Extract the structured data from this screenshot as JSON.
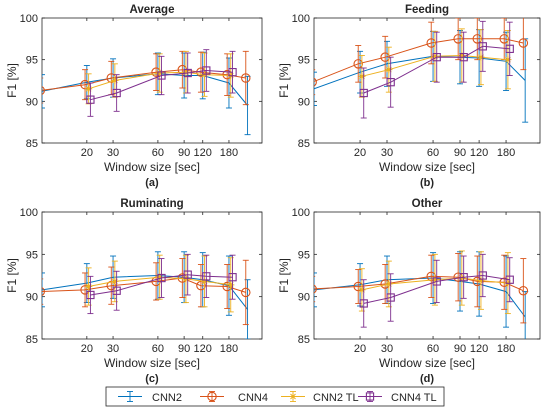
{
  "legend": {
    "placement": "bottom-center",
    "entries": [
      {
        "label": "CNN2",
        "color": "#0072BD",
        "marker": "errorbar"
      },
      {
        "label": "CNN4",
        "color": "#D95319",
        "marker": "circle"
      },
      {
        "label": "CNN2 TL",
        "color": "#EDB120",
        "marker": "asterisk"
      },
      {
        "label": "CNN4 TL",
        "color": "#7E2F8E",
        "marker": "square"
      }
    ]
  },
  "chart_data": [
    {
      "type": "line",
      "title": "Average",
      "panel_label": "(a)",
      "xlabel": "Window size [sec]",
      "ylabel": "F1 [%]",
      "xscale": "log",
      "xlim": [
        10,
        300
      ],
      "ylim": [
        85,
        100
      ],
      "xticks": [
        20,
        30,
        60,
        90,
        120,
        180
      ],
      "xtick_labels": [
        "20",
        "30",
        "60",
        "90",
        "120",
        "180"
      ],
      "yticks": [
        85,
        90,
        95,
        100
      ],
      "ytick_labels": [
        "85",
        "90",
        "95",
        "100"
      ],
      "grid": false,
      "series": [
        {
          "name": "CNN2",
          "x": [
            10,
            20,
            30,
            60,
            90,
            120,
            180,
            240
          ],
          "y": [
            91.2,
            92.3,
            92.8,
            93.3,
            93.1,
            93.1,
            92.2,
            89.5
          ],
          "err": [
            2.0,
            2.0,
            2.3,
            2.5,
            2.7,
            2.8,
            3.0,
            3.5
          ]
        },
        {
          "name": "CNN4",
          "x": [
            10,
            20,
            30,
            60,
            90,
            120,
            180,
            240
          ],
          "y": [
            91.3,
            92.0,
            92.8,
            93.5,
            93.8,
            93.5,
            93.2,
            92.8
          ],
          "err": [
            1.5,
            1.8,
            2.0,
            2.2,
            2.2,
            2.4,
            2.5,
            3.2
          ]
        },
        {
          "name": "CNN2 TL",
          "x": [
            20,
            30,
            60,
            90,
            120,
            180
          ],
          "y": [
            91.5,
            92.5,
            93.4,
            93.5,
            93.2,
            93.1
          ],
          "err": [
            1.8,
            2.0,
            2.3,
            2.5,
            2.6,
            2.6
          ]
        },
        {
          "name": "CNN4 TL",
          "x": [
            20,
            30,
            60,
            90,
            120,
            180
          ],
          "y": [
            90.2,
            91.0,
            93.1,
            93.4,
            93.7,
            93.5
          ],
          "err": [
            2.0,
            2.2,
            2.3,
            2.4,
            2.5,
            2.5
          ]
        }
      ]
    },
    {
      "type": "line",
      "title": "Feeding",
      "panel_label": "(b)",
      "xlabel": "Window size [sec]",
      "ylabel": "F1 [%]",
      "xscale": "log",
      "xlim": [
        10,
        300
      ],
      "ylim": [
        85,
        100
      ],
      "xticks": [
        20,
        30,
        60,
        90,
        120,
        180
      ],
      "xtick_labels": [
        "20",
        "30",
        "60",
        "90",
        "120",
        "180"
      ],
      "yticks": [
        85,
        90,
        95,
        100
      ],
      "ytick_labels": [
        "85",
        "90",
        "95",
        "100"
      ],
      "grid": false,
      "series": [
        {
          "name": "CNN2",
          "x": [
            10,
            20,
            30,
            60,
            90,
            120,
            180,
            240
          ],
          "y": [
            91.5,
            93.5,
            94.5,
            95.4,
            95.3,
            95.2,
            94.8,
            92.5
          ],
          "err": [
            2.0,
            2.5,
            2.7,
            3.0,
            3.2,
            3.4,
            3.5,
            5.0
          ]
        },
        {
          "name": "CNN4",
          "x": [
            10,
            20,
            30,
            60,
            90,
            120,
            180,
            240
          ],
          "y": [
            92.3,
            94.5,
            95.3,
            97.0,
            97.5,
            97.5,
            97.5,
            97.0
          ],
          "err": [
            1.5,
            2.2,
            2.5,
            2.5,
            2.5,
            2.5,
            2.5,
            3.2
          ]
        },
        {
          "name": "CNN2 TL",
          "x": [
            20,
            30,
            60,
            90,
            120,
            180
          ],
          "y": [
            93.0,
            93.8,
            95.4,
            95.5,
            95.3,
            95.0
          ],
          "err": [
            2.5,
            2.7,
            3.0,
            3.2,
            3.3,
            3.5
          ]
        },
        {
          "name": "CNN4 TL",
          "x": [
            20,
            30,
            60,
            90,
            120,
            180
          ],
          "y": [
            91.0,
            92.3,
            95.3,
            95.3,
            96.6,
            96.3
          ],
          "err": [
            3.0,
            3.0,
            3.0,
            3.0,
            3.0,
            3.2
          ]
        }
      ]
    },
    {
      "type": "line",
      "title": "Ruminating",
      "panel_label": "(c)",
      "xlabel": "Window size [sec]",
      "ylabel": "F1 [%]",
      "xscale": "log",
      "xlim": [
        10,
        300
      ],
      "ylim": [
        85,
        100
      ],
      "xticks": [
        20,
        30,
        60,
        90,
        120,
        180
      ],
      "xtick_labels": [
        "20",
        "30",
        "60",
        "90",
        "120",
        "180"
      ],
      "yticks": [
        85,
        90,
        95,
        100
      ],
      "ytick_labels": [
        "85",
        "90",
        "95",
        "100"
      ],
      "grid": false,
      "series": [
        {
          "name": "CNN2",
          "x": [
            10,
            20,
            30,
            60,
            90,
            120,
            180,
            240
          ],
          "y": [
            90.8,
            91.6,
            92.3,
            92.5,
            92.3,
            92.0,
            91.3,
            88.5
          ],
          "err": [
            2.0,
            2.3,
            2.5,
            2.8,
            3.0,
            3.2,
            3.5,
            3.5
          ]
        },
        {
          "name": "CNN4",
          "x": [
            10,
            20,
            30,
            60,
            90,
            120,
            180,
            240
          ],
          "y": [
            90.6,
            90.8,
            91.3,
            91.8,
            92.2,
            91.3,
            91.2,
            90.5
          ],
          "err": [
            1.5,
            2.0,
            2.2,
            2.2,
            2.3,
            2.5,
            2.6,
            3.8
          ]
        },
        {
          "name": "CNN2 TL",
          "x": [
            20,
            30,
            60,
            90,
            120,
            180
          ],
          "y": [
            91.2,
            91.8,
            92.3,
            92.1,
            91.8,
            91.4
          ],
          "err": [
            2.2,
            2.4,
            2.6,
            2.8,
            3.0,
            3.2
          ]
        },
        {
          "name": "CNN4 TL",
          "x": [
            20,
            30,
            60,
            90,
            120,
            180
          ],
          "y": [
            90.2,
            90.7,
            92.2,
            92.6,
            92.4,
            92.3
          ],
          "err": [
            2.2,
            2.3,
            2.3,
            2.4,
            2.5,
            2.6
          ]
        }
      ]
    },
    {
      "type": "line",
      "title": "Other",
      "panel_label": "(d)",
      "xlabel": "Window size [sec]",
      "ylabel": "F1 [%]",
      "xscale": "log",
      "xlim": [
        10,
        300
      ],
      "ylim": [
        85,
        100
      ],
      "xticks": [
        20,
        30,
        60,
        90,
        120,
        180
      ],
      "xtick_labels": [
        "20",
        "30",
        "60",
        "90",
        "120",
        "180"
      ],
      "yticks": [
        85,
        90,
        95,
        100
      ],
      "ytick_labels": [
        "85",
        "90",
        "95",
        "100"
      ],
      "grid": false,
      "series": [
        {
          "name": "CNN2",
          "x": [
            10,
            20,
            30,
            60,
            90,
            120,
            180,
            240
          ],
          "y": [
            90.8,
            91.4,
            92.0,
            92.2,
            91.8,
            91.5,
            90.6,
            87.6
          ],
          "err": [
            2.0,
            2.5,
            2.8,
            3.0,
            3.5,
            3.8,
            4.2,
            3.0
          ]
        },
        {
          "name": "CNN4",
          "x": [
            10,
            20,
            30,
            60,
            90,
            120,
            180,
            240
          ],
          "y": [
            90.9,
            91.2,
            91.5,
            92.4,
            92.3,
            91.8,
            91.7,
            90.7
          ],
          "err": [
            1.5,
            2.0,
            2.3,
            2.5,
            2.8,
            3.0,
            3.2,
            3.8
          ]
        },
        {
          "name": "CNN2 TL",
          "x": [
            20,
            30,
            60,
            90,
            120,
            180
          ],
          "y": [
            90.8,
            91.5,
            92.0,
            92.2,
            91.9,
            91.6
          ],
          "err": [
            2.5,
            2.7,
            3.0,
            3.2,
            3.4,
            3.6
          ]
        },
        {
          "name": "CNN4 TL",
          "x": [
            20,
            30,
            60,
            90,
            120,
            180
          ],
          "y": [
            89.2,
            89.9,
            91.8,
            92.3,
            92.5,
            92.0
          ],
          "err": [
            2.8,
            2.8,
            2.5,
            2.5,
            2.5,
            2.6
          ]
        }
      ]
    }
  ]
}
